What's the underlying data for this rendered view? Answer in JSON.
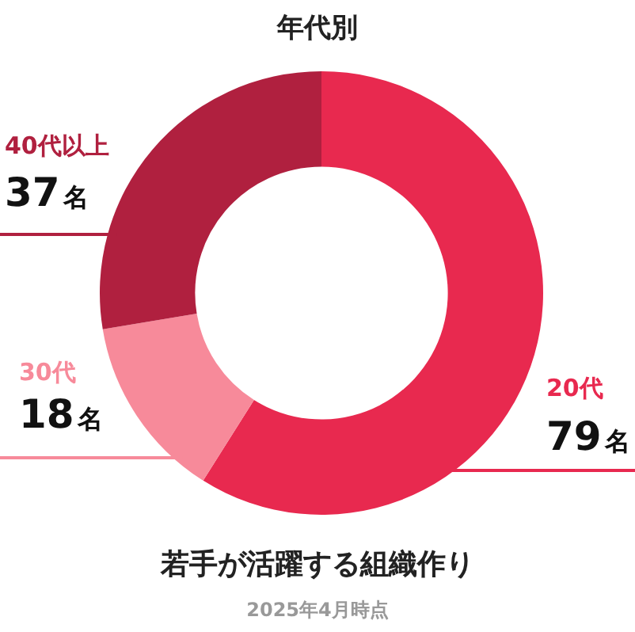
{
  "chart_data": {
    "type": "donut",
    "title": "年代別",
    "categories": [
      "20代",
      "30代",
      "40代以上"
    ],
    "values": [
      79,
      18,
      37
    ],
    "colors": [
      "#e8294f",
      "#f78a9a",
      "#b0203f"
    ],
    "value_labels": [
      "79名",
      "18名",
      "37名"
    ],
    "legend": false,
    "annotations": [
      "若手が活躍する組織作り",
      "2025年4月時点"
    ]
  }
}
